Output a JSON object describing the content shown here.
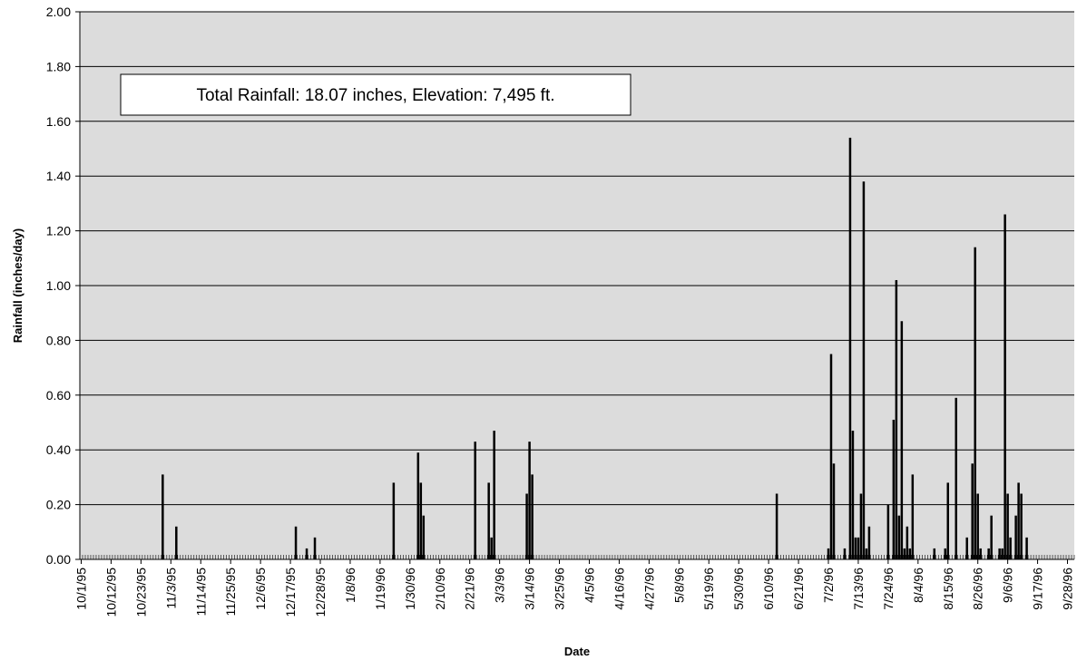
{
  "chart_data": {
    "type": "bar",
    "title": "",
    "annotation": "Total Rainfall: 18.07 inches, Elevation: 7,495 ft.",
    "xlabel": "Date",
    "ylabel": "Rainfall (inches/day)",
    "ylim": [
      0,
      2.0
    ],
    "yticks": [
      "0.00",
      "0.20",
      "0.40",
      "0.60",
      "0.80",
      "1.00",
      "1.20",
      "1.40",
      "1.60",
      "1.80",
      "2.00"
    ],
    "x_start_date": "1995-10-01",
    "x_end_date": "1996-09-30",
    "xtick_labels": [
      "10/1/95",
      "10/12/95",
      "10/23/95",
      "11/3/95",
      "11/14/95",
      "11/25/95",
      "12/6/95",
      "12/17/95",
      "12/28/95",
      "1/8/96",
      "1/19/96",
      "1/30/96",
      "2/10/96",
      "2/21/96",
      "3/3/96",
      "3/14/96",
      "3/25/96",
      "4/5/96",
      "4/16/96",
      "4/27/96",
      "5/8/96",
      "5/19/96",
      "5/30/96",
      "6/10/96",
      "6/21/96",
      "7/2/96",
      "7/13/96",
      "7/24/96",
      "8/4/96",
      "8/15/96",
      "8/26/96",
      "9/6/96",
      "9/17/96",
      "9/28/96"
    ],
    "grid": true,
    "legend": "none",
    "colors": {
      "bar": "#000000",
      "plot_bg": "#dcdcdc",
      "grid": "#000000"
    },
    "series": [
      {
        "points": [
          [
            "1995-10-31",
            0.31
          ],
          [
            "1995-11-05",
            0.12
          ],
          [
            "1995-12-19",
            0.12
          ],
          [
            "1995-12-23",
            0.04
          ],
          [
            "1995-12-26",
            0.08
          ],
          [
            "1996-01-24",
            0.28
          ],
          [
            "1996-02-02",
            0.39
          ],
          [
            "1996-02-03",
            0.28
          ],
          [
            "1996-02-04",
            0.16
          ],
          [
            "1996-02-23",
            0.43
          ],
          [
            "1996-02-28",
            0.28
          ],
          [
            "1996-02-29",
            0.08
          ],
          [
            "1996-03-01",
            0.47
          ],
          [
            "1996-03-13",
            0.24
          ],
          [
            "1996-03-14",
            0.43
          ],
          [
            "1996-03-15",
            0.31
          ],
          [
            "1996-06-13",
            0.24
          ],
          [
            "1996-07-02",
            0.04
          ],
          [
            "1996-07-03",
            0.75
          ],
          [
            "1996-07-04",
            0.35
          ],
          [
            "1996-07-08",
            0.04
          ],
          [
            "1996-07-10",
            1.54
          ],
          [
            "1996-07-11",
            0.47
          ],
          [
            "1996-07-12",
            0.08
          ],
          [
            "1996-07-13",
            0.08
          ],
          [
            "1996-07-14",
            0.24
          ],
          [
            "1996-07-15",
            1.38
          ],
          [
            "1996-07-16",
            0.04
          ],
          [
            "1996-07-17",
            0.12
          ],
          [
            "1996-07-24",
            0.2
          ],
          [
            "1996-07-26",
            0.51
          ],
          [
            "1996-07-27",
            1.02
          ],
          [
            "1996-07-28",
            0.16
          ],
          [
            "1996-07-29",
            0.87
          ],
          [
            "1996-07-30",
            0.04
          ],
          [
            "1996-07-31",
            0.12
          ],
          [
            "1996-08-01",
            0.04
          ],
          [
            "1996-08-02",
            0.31
          ],
          [
            "1996-08-10",
            0.04
          ],
          [
            "1996-08-14",
            0.04
          ],
          [
            "1996-08-15",
            0.28
          ],
          [
            "1996-08-18",
            0.59
          ],
          [
            "1996-08-22",
            0.08
          ],
          [
            "1996-08-24",
            0.35
          ],
          [
            "1996-08-25",
            1.14
          ],
          [
            "1996-08-26",
            0.24
          ],
          [
            "1996-08-27",
            0.04
          ],
          [
            "1996-08-30",
            0.04
          ],
          [
            "1996-08-31",
            0.16
          ],
          [
            "1996-09-03",
            0.04
          ],
          [
            "1996-09-04",
            0.04
          ],
          [
            "1996-09-05",
            1.26
          ],
          [
            "1996-09-06",
            0.24
          ],
          [
            "1996-09-07",
            0.08
          ],
          [
            "1996-09-09",
            0.16
          ],
          [
            "1996-09-10",
            0.28
          ],
          [
            "1996-09-11",
            0.24
          ],
          [
            "1996-09-13",
            0.08
          ]
        ]
      }
    ]
  }
}
